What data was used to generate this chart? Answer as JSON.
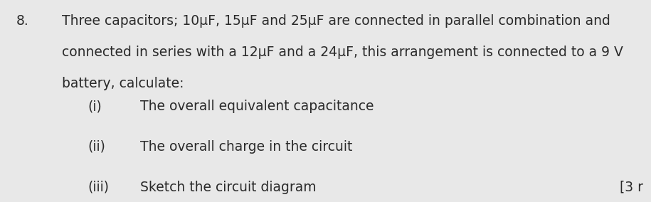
{
  "background_color": "#e8e8e8",
  "question_number": "8.",
  "question_number_fontsize": 13.5,
  "paragraph_text_line1": "Three capacitors; 10μF, 15μF and 25μF are connected in parallel combination and",
  "paragraph_text_line2": "connected in series with a 12μF and a 24μF, this arrangement is connected to a 9 V",
  "paragraph_text_line3": "battery, calculate:",
  "paragraph_fontsize": 13.5,
  "items": [
    {
      "label": "(i)",
      "text": "The overall equivalent capacitance"
    },
    {
      "label": "(ii)",
      "text": "The overall charge in the circuit"
    },
    {
      "label": "(iii)",
      "text": "Sketch the circuit diagram"
    }
  ],
  "item_fontsize": 13.5,
  "marks_text": "[3 r",
  "marks_fontsize": 13.5,
  "text_color": "#2a2a2a"
}
